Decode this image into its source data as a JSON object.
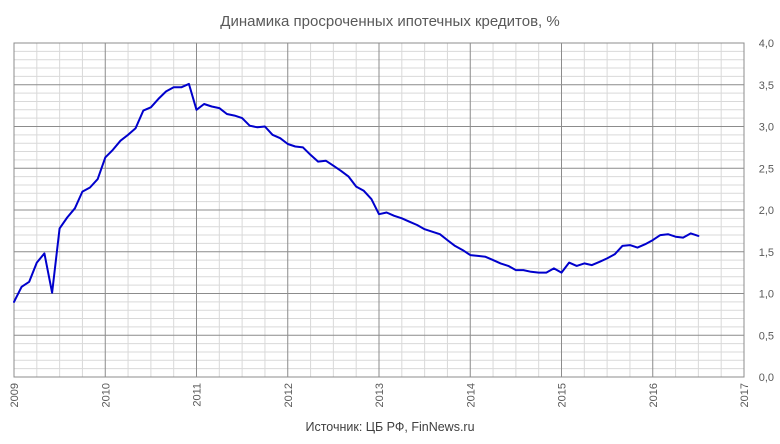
{
  "chart_data": {
    "type": "line",
    "title": "Динамика просроченных ипотечных кредитов, %",
    "source": "Источник: ЦБ РФ, FinNews.ru",
    "xlabel": "",
    "ylabel": "",
    "xlim": [
      2009,
      2017
    ],
    "ylim": [
      0,
      4
    ],
    "x_ticks": [
      "2009",
      "2010",
      "2011",
      "2012",
      "2013",
      "2014",
      "2015",
      "2016",
      "2017"
    ],
    "y_ticks": [
      "0,0",
      "0,5",
      "1,0",
      "1,5",
      "2,0",
      "2,5",
      "3,0",
      "3,5",
      "4,0"
    ],
    "grid": true,
    "minor_grid": true,
    "y_axis_side": "right",
    "series": [
      {
        "color": "#0000cc",
        "x": [
          2009.0,
          2009.083,
          2009.167,
          2009.25,
          2009.333,
          2009.417,
          2009.5,
          2009.583,
          2009.667,
          2009.75,
          2009.833,
          2009.917,
          2010.0,
          2010.083,
          2010.167,
          2010.25,
          2010.333,
          2010.417,
          2010.5,
          2010.583,
          2010.667,
          2010.75,
          2010.833,
          2010.917,
          2011.0,
          2011.083,
          2011.167,
          2011.25,
          2011.333,
          2011.417,
          2011.5,
          2011.583,
          2011.667,
          2011.75,
          2011.833,
          2011.917,
          2012.0,
          2012.083,
          2012.167,
          2012.25,
          2012.333,
          2012.417,
          2012.5,
          2012.583,
          2012.667,
          2012.75,
          2012.833,
          2012.917,
          2013.0,
          2013.083,
          2013.167,
          2013.25,
          2013.333,
          2013.417,
          2013.5,
          2013.583,
          2013.667,
          2013.75,
          2013.833,
          2013.917,
          2014.0,
          2014.083,
          2014.167,
          2014.25,
          2014.333,
          2014.417,
          2014.5,
          2014.583,
          2014.667,
          2014.75,
          2014.833,
          2014.917,
          2015.0,
          2015.083,
          2015.167,
          2015.25,
          2015.333,
          2015.417,
          2015.5,
          2015.583,
          2015.667,
          2015.75,
          2015.833,
          2015.917,
          2016.0,
          2016.083,
          2016.167,
          2016.25,
          2016.333,
          2016.417,
          2016.5
        ],
        "values": [
          0.9,
          1.08,
          1.14,
          1.37,
          1.48,
          1.01,
          1.78,
          1.91,
          2.02,
          2.22,
          2.27,
          2.37,
          2.63,
          2.72,
          2.83,
          2.9,
          2.98,
          3.19,
          3.23,
          3.33,
          3.42,
          3.47,
          3.47,
          3.51,
          3.2,
          3.27,
          3.24,
          3.22,
          3.15,
          3.13,
          3.1,
          3.01,
          2.99,
          3.0,
          2.9,
          2.86,
          2.79,
          2.76,
          2.75,
          2.66,
          2.58,
          2.59,
          2.53,
          2.47,
          2.4,
          2.28,
          2.23,
          2.13,
          1.95,
          1.97,
          1.93,
          1.9,
          1.86,
          1.82,
          1.77,
          1.74,
          1.71,
          1.64,
          1.57,
          1.52,
          1.46,
          1.45,
          1.44,
          1.4,
          1.36,
          1.33,
          1.28,
          1.28,
          1.26,
          1.25,
          1.25,
          1.3,
          1.25,
          1.37,
          1.33,
          1.36,
          1.34,
          1.38,
          1.42,
          1.47,
          1.57,
          1.58,
          1.55,
          1.59,
          1.64,
          1.7,
          1.71,
          1.68,
          1.67,
          1.72,
          1.69
        ]
      }
    ]
  }
}
